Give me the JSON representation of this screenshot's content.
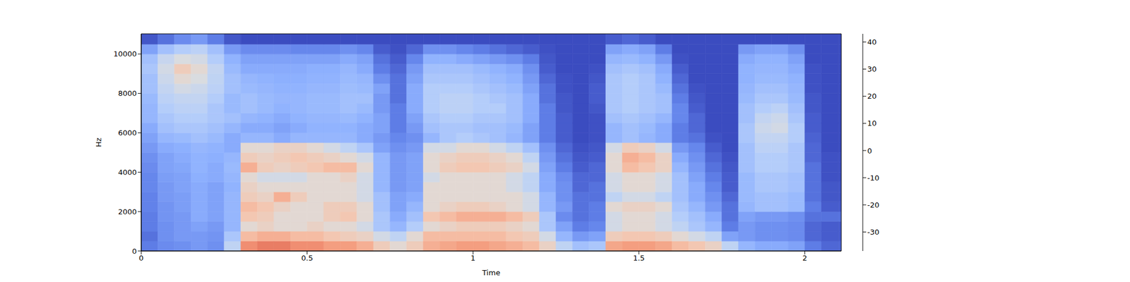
{
  "chart_data": {
    "type": "heatmap",
    "x_label": "Time",
    "y_label": "Hz",
    "color": "coolwarm",
    "xlim": [
      0,
      2.11
    ],
    "xticks": [
      0,
      0.5,
      1,
      1.5,
      2
    ],
    "ylim": [
      0,
      11025
    ],
    "yticks": [
      0,
      2000,
      4000,
      6000,
      8000,
      10000
    ],
    "x_edges": [
      0,
      0.05,
      0.1,
      0.15,
      0.2,
      0.25,
      0.3,
      0.35,
      0.4,
      0.45,
      0.5,
      0.55,
      0.6,
      0.65,
      0.7,
      0.75,
      0.8,
      0.85,
      0.9,
      0.95,
      1.0,
      1.05,
      1.1,
      1.15,
      1.2,
      1.25,
      1.3,
      1.35,
      1.4,
      1.45,
      1.5,
      1.55,
      1.6,
      1.65,
      1.7,
      1.75,
      1.8,
      1.85,
      1.9,
      1.95,
      2.0,
      2.05,
      2.1,
      2.11
    ],
    "y_edges": [
      0,
      500,
      1000,
      1500,
      2000,
      2500,
      3000,
      3500,
      4000,
      4500,
      5000,
      5500,
      6000,
      6500,
      7000,
      7500,
      8000,
      8500,
      9000,
      9500,
      10000,
      10500,
      11025
    ],
    "cells": [
      [
        -28,
        -30,
        -28,
        -28,
        -27,
        -27,
        -26,
        -26,
        -25,
        -24,
        -22,
        -20,
        -18,
        -15,
        -15,
        -14,
        -12,
        -12,
        -10,
        -12,
        -20,
        -35
      ],
      [
        -25,
        -24,
        -24,
        -23,
        -23,
        -22,
        -22,
        -21,
        -20,
        -20,
        -18,
        -15,
        -12,
        -10,
        -8,
        -6,
        -4,
        -2,
        0,
        -3,
        -12,
        -30
      ],
      [
        -24,
        -22,
        -22,
        -22,
        -21,
        -21,
        -20,
        -20,
        -19,
        -18,
        -17,
        -14,
        -10,
        -8,
        -6,
        -4,
        0,
        5,
        10,
        2,
        -8,
        -25
      ],
      [
        -22,
        -22,
        -20,
        -18,
        -18,
        -18,
        -18,
        -17,
        -16,
        -16,
        -15,
        -12,
        -10,
        -8,
        -6,
        -4,
        -2,
        2,
        5,
        0,
        -6,
        -22
      ],
      [
        -24,
        -23,
        -22,
        -20,
        -20,
        -20,
        -20,
        -18,
        -18,
        -17,
        -16,
        -14,
        -12,
        -10,
        -10,
        -8,
        -6,
        -5,
        -4,
        -8,
        -12,
        -28
      ],
      [
        -5,
        -10,
        -15,
        -15,
        -15,
        -15,
        -16,
        -15,
        -14,
        -15,
        -18,
        -18,
        -15,
        -12,
        -14,
        -14,
        -12,
        -12,
        -14,
        -16,
        -22,
        -35
      ],
      [
        25,
        15,
        5,
        12,
        15,
        10,
        8,
        5,
        18,
        10,
        5,
        -15,
        -18,
        -15,
        -12,
        -12,
        -14,
        -15,
        -18,
        -20,
        -25,
        -37
      ],
      [
        28,
        18,
        8,
        10,
        12,
        8,
        5,
        0,
        10,
        8,
        5,
        -15,
        -18,
        -16,
        -14,
        -14,
        -15,
        -16,
        -18,
        -20,
        -25,
        -37
      ],
      [
        28,
        18,
        5,
        5,
        8,
        18,
        5,
        0,
        8,
        10,
        8,
        -18,
        -20,
        -18,
        -16,
        -15,
        -16,
        -17,
        -18,
        -20,
        -25,
        -37
      ],
      [
        25,
        15,
        5,
        5,
        5,
        10,
        5,
        0,
        10,
        12,
        8,
        -15,
        -18,
        -16,
        -15,
        -15,
        -16,
        -17,
        -18,
        -20,
        -26,
        -37
      ],
      [
        25,
        15,
        8,
        5,
        5,
        5,
        5,
        5,
        12,
        10,
        5,
        -15,
        -16,
        -15,
        -14,
        -14,
        -15,
        -16,
        -17,
        -20,
        -26,
        -37
      ],
      [
        22,
        12,
        5,
        10,
        10,
        5,
        5,
        5,
        15,
        8,
        0,
        -15,
        -16,
        -15,
        -14,
        -14,
        -15,
        -16,
        -17,
        -20,
        -26,
        -37
      ],
      [
        22,
        10,
        5,
        12,
        10,
        5,
        5,
        8,
        15,
        5,
        -5,
        -15,
        -16,
        -14,
        -12,
        -12,
        -13,
        -14,
        -15,
        -18,
        -24,
        -37
      ],
      [
        18,
        8,
        0,
        5,
        5,
        0,
        0,
        0,
        5,
        0,
        -10,
        -18,
        -18,
        -16,
        -14,
        -12,
        -14,
        -15,
        -18,
        -20,
        -26,
        -37
      ],
      [
        10,
        0,
        -10,
        -10,
        -12,
        -12,
        -15,
        -15,
        -15,
        -15,
        -20,
        -22,
        -20,
        -20,
        -22,
        -22,
        -20,
        -24,
        -28,
        -30,
        -34,
        -37
      ],
      [
        5,
        -5,
        -15,
        -18,
        -20,
        -20,
        -22,
        -22,
        -22,
        -22,
        -24,
        -26,
        -28,
        -28,
        -28,
        -30,
        -30,
        -30,
        -32,
        -34,
        -36,
        -37
      ],
      [
        10,
        5,
        -8,
        -12,
        -15,
        -18,
        -20,
        -20,
        -20,
        -20,
        -22,
        -24,
        -22,
        -20,
        -18,
        -18,
        -18,
        -20,
        -22,
        -26,
        -32,
        -37
      ],
      [
        18,
        15,
        5,
        12,
        5,
        5,
        5,
        0,
        5,
        5,
        0,
        -15,
        -12,
        -10,
        -8,
        -8,
        -8,
        -10,
        -12,
        -16,
        -24,
        -37
      ],
      [
        20,
        15,
        8,
        15,
        8,
        5,
        5,
        5,
        10,
        8,
        0,
        -10,
        -10,
        -8,
        -6,
        -6,
        -8,
        -10,
        -12,
        -16,
        -24,
        -37
      ],
      [
        22,
        15,
        10,
        18,
        10,
        5,
        5,
        5,
        12,
        10,
        5,
        -8,
        -10,
        -8,
        -6,
        -6,
        -8,
        -10,
        -12,
        -18,
        -26,
        -37
      ],
      [
        22,
        15,
        10,
        18,
        10,
        5,
        5,
        5,
        12,
        10,
        5,
        -10,
        -12,
        -10,
        -8,
        -8,
        -10,
        -12,
        -14,
        -20,
        -28,
        -37
      ],
      [
        20,
        15,
        10,
        18,
        8,
        5,
        5,
        5,
        10,
        8,
        0,
        -12,
        -12,
        -10,
        -8,
        -10,
        -12,
        -14,
        -16,
        -22,
        -30,
        -37
      ],
      [
        18,
        12,
        8,
        15,
        5,
        5,
        0,
        0,
        8,
        5,
        -5,
        -15,
        -14,
        -12,
        -12,
        -12,
        -14,
        -16,
        -18,
        -24,
        -32,
        -37
      ],
      [
        15,
        10,
        5,
        10,
        0,
        0,
        -5,
        -5,
        0,
        -5,
        -12,
        -20,
        -20,
        -18,
        -18,
        -18,
        -20,
        -22,
        -24,
        -28,
        -34,
        -37
      ],
      [
        8,
        0,
        -10,
        -10,
        -15,
        -15,
        -18,
        -18,
        -20,
        -22,
        -24,
        -28,
        -28,
        -28,
        -28,
        -30,
        -30,
        -32,
        -34,
        -35,
        -36,
        -37
      ],
      [
        -5,
        -15,
        -20,
        -25,
        -22,
        -24,
        -24,
        -25,
        -28,
        -30,
        -32,
        -34,
        -34,
        -34,
        -35,
        -35,
        -36,
        -36,
        -37,
        -37,
        -37,
        -37
      ],
      [
        -12,
        -22,
        -28,
        -30,
        -30,
        -30,
        -32,
        -32,
        -34,
        -35,
        -36,
        -37,
        -37,
        -37,
        -37,
        -37,
        -37,
        -37,
        -37,
        -37,
        -37,
        -37
      ],
      [
        -10,
        -20,
        -26,
        -28,
        -28,
        -30,
        -30,
        -32,
        -32,
        -34,
        -35,
        -36,
        -36,
        -36,
        -35,
        -34,
        -34,
        -35,
        -36,
        -37,
        -37,
        -37
      ],
      [
        20,
        10,
        0,
        0,
        5,
        -5,
        0,
        0,
        5,
        5,
        0,
        -15,
        -15,
        -12,
        -10,
        -10,
        -10,
        -10,
        -12,
        -15,
        -20,
        -34
      ],
      [
        22,
        12,
        5,
        5,
        8,
        0,
        5,
        5,
        15,
        18,
        10,
        -12,
        -12,
        -10,
        -8,
        -8,
        -8,
        -8,
        -10,
        -14,
        -18,
        -32
      ],
      [
        22,
        12,
        5,
        5,
        8,
        0,
        5,
        5,
        12,
        15,
        8,
        -15,
        -14,
        -12,
        -10,
        -10,
        -10,
        -10,
        -12,
        -16,
        -20,
        -34
      ],
      [
        20,
        10,
        0,
        0,
        5,
        -5,
        0,
        0,
        8,
        8,
        0,
        -18,
        -18,
        -15,
        -12,
        -12,
        -14,
        -16,
        -18,
        -22,
        -28,
        -37
      ],
      [
        15,
        5,
        -5,
        -8,
        -10,
        -12,
        -12,
        -12,
        -15,
        -18,
        -22,
        -28,
        -28,
        -26,
        -26,
        -28,
        -30,
        -32,
        -34,
        -36,
        -37,
        -37
      ],
      [
        12,
        0,
        -10,
        -12,
        -15,
        -18,
        -18,
        -20,
        -22,
        -24,
        -26,
        -30,
        -32,
        -32,
        -34,
        -35,
        -36,
        -37,
        -37,
        -37,
        -37,
        -37
      ],
      [
        8,
        -5,
        -15,
        -18,
        -22,
        -24,
        -26,
        -28,
        -30,
        -32,
        -34,
        -36,
        -37,
        -37,
        -37,
        -37,
        -37,
        -37,
        -37,
        -37,
        -37,
        -37
      ],
      [
        -5,
        -20,
        -28,
        -30,
        -30,
        -32,
        -34,
        -34,
        -35,
        -36,
        -37,
        -37,
        -37,
        -37,
        -37,
        -37,
        -37,
        -37,
        -37,
        -37,
        -37,
        -37
      ],
      [
        -15,
        -22,
        -22,
        -20,
        -15,
        -14,
        -14,
        -14,
        -12,
        -12,
        -12,
        -10,
        -10,
        -12,
        -12,
        -14,
        -15,
        -16,
        -16,
        -18,
        -22,
        -37
      ],
      [
        -18,
        -24,
        -24,
        -22,
        -12,
        -12,
        -10,
        -10,
        -8,
        -8,
        -6,
        -4,
        -2,
        -4,
        -8,
        -10,
        -12,
        -14,
        -15,
        -16,
        -20,
        -37
      ],
      [
        -18,
        -24,
        -24,
        -22,
        -12,
        -12,
        -10,
        -10,
        -8,
        -8,
        -6,
        -4,
        0,
        -2,
        -6,
        -10,
        -12,
        -14,
        -15,
        -16,
        -20,
        -37
      ],
      [
        -20,
        -25,
        -25,
        -24,
        -14,
        -14,
        -12,
        -12,
        -10,
        -10,
        -10,
        -8,
        -8,
        -10,
        -12,
        -14,
        -15,
        -16,
        -18,
        -20,
        -24,
        -37
      ],
      [
        -28,
        -32,
        -32,
        -30,
        -28,
        -30,
        -30,
        -30,
        -30,
        -32,
        -32,
        -33,
        -34,
        -34,
        -35,
        -35,
        -36,
        -36,
        -36,
        -37,
        -37,
        -37
      ],
      [
        -32,
        -34,
        -34,
        -30,
        -34,
        -35,
        -35,
        -36,
        -36,
        -36,
        -37,
        -37,
        -37,
        -37,
        -37,
        -37,
        -37,
        -37,
        -37,
        -37,
        -37,
        -37
      ],
      [
        -32,
        -34,
        -34,
        -30,
        -34,
        -35,
        -35,
        -36,
        -36,
        -36,
        -37,
        -37,
        -37,
        -37,
        -37,
        -37,
        -37,
        -37,
        -37,
        -37,
        -37,
        -37
      ]
    ],
    "colorbar": {
      "range": [
        -37,
        43
      ],
      "ticks": [
        -30,
        -20,
        -10,
        0,
        10,
        20,
        30,
        40
      ]
    }
  }
}
